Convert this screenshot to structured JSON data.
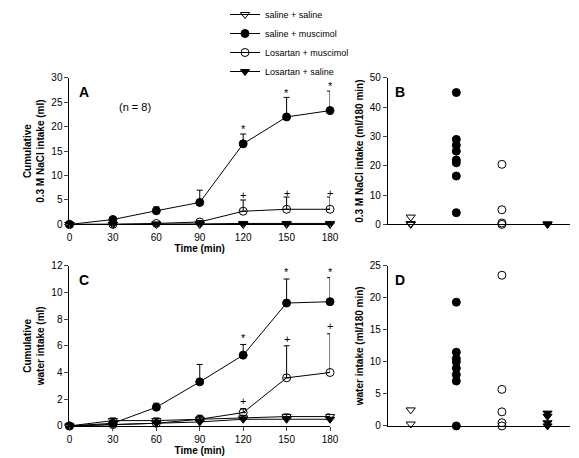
{
  "chart_data": [
    {
      "type": "line",
      "title": "A",
      "x_label": "Time (min)",
      "y_label": [
        "Cumulative",
        "0.3 M NaCl intake (ml)"
      ],
      "x": [
        0,
        30,
        60,
        90,
        120,
        150,
        180
      ],
      "xlim": [
        0,
        180
      ],
      "xticks": [
        0,
        30,
        60,
        90,
        120,
        150,
        180
      ],
      "ylim": [
        0,
        30
      ],
      "yticks": [
        0,
        5,
        10,
        15,
        20,
        25,
        30
      ],
      "legend": "top",
      "series": [
        {
          "name": "saline + saline",
          "color": "#000000",
          "marker": "triangle-down-open",
          "values": [
            0,
            0,
            0.1,
            0.1,
            0.2,
            0.2,
            0.2
          ],
          "errors": [
            0,
            0,
            0.1,
            0.1,
            0.1,
            0.1,
            0.1
          ]
        },
        {
          "name": "saline + muscimol",
          "color": "#000000",
          "marker": "circle",
          "values": [
            0,
            1,
            2.8,
            4.5,
            16.5,
            22,
            23.3
          ],
          "errors": [
            0,
            0.3,
            0.8,
            2.5,
            2,
            4,
            4
          ]
        },
        {
          "name": "Losartan + muscimol",
          "color": "#000000",
          "marker": "circle-open",
          "values": [
            0,
            0,
            0.2,
            0.5,
            2.7,
            3.1,
            3.1
          ],
          "errors": [
            0,
            0,
            0.2,
            0.3,
            2.3,
            2.5,
            2.5
          ]
        },
        {
          "name": "Losartan + saline",
          "color": "#000000",
          "marker": "triangle-down",
          "values": [
            0,
            0,
            0,
            0,
            0,
            0,
            0
          ],
          "errors": [
            0,
            0,
            0,
            0,
            0,
            0,
            0
          ]
        }
      ],
      "annotations": [
        {
          "text": "(n = 8)",
          "x": 45,
          "y": 24
        },
        {
          "text": "*",
          "x": 120,
          "y": 19.5
        },
        {
          "text": "*",
          "x": 150,
          "y": 27
        },
        {
          "text": "*",
          "x": 180,
          "y": 28.3
        },
        {
          "text": "+",
          "x": 120,
          "y": 6
        },
        {
          "text": "+",
          "x": 150,
          "y": 6.5
        },
        {
          "text": "+",
          "x": 180,
          "y": 6.5
        }
      ]
    },
    {
      "type": "scatter",
      "title": "B",
      "y_label": [
        "0.3 M NaCl intake (ml/180 min)"
      ],
      "ylim": [
        0,
        50
      ],
      "yticks": [
        0,
        10,
        20,
        30,
        40,
        50
      ],
      "tick_labels": "y",
      "series": [
        {
          "name": "saline + saline",
          "color": "#000000",
          "marker": "triangle-down-open",
          "values": [
            2.5,
            0.3,
            0
          ]
        },
        {
          "name": "saline + muscimol",
          "color": "#000000",
          "marker": "circle",
          "values": [
            45,
            29,
            27,
            25,
            22,
            21,
            16.5,
            4
          ]
        },
        {
          "name": "Losartan + muscimol",
          "color": "#000000",
          "marker": "circle-open",
          "values": [
            20.5,
            5,
            0.5,
            0
          ]
        },
        {
          "name": "Losartan + saline",
          "color": "#000000",
          "marker": "triangle-down",
          "values": [
            0.2,
            0
          ]
        }
      ]
    },
    {
      "type": "line",
      "title": "C",
      "x_label": "Time (min)",
      "y_label": [
        "Cumulative",
        "water intake (ml)"
      ],
      "x": [
        0,
        30,
        60,
        90,
        120,
        150,
        180
      ],
      "xlim": [
        0,
        180
      ],
      "xticks": [
        0,
        30,
        60,
        90,
        120,
        150,
        180
      ],
      "ylim": [
        0,
        12
      ],
      "yticks": [
        0,
        2,
        4,
        6,
        8,
        10,
        12
      ],
      "series": [
        {
          "name": "saline + saline",
          "color": "#000000",
          "marker": "triangle-down-open",
          "values": [
            0,
            0.4,
            0.4,
            0.5,
            0.6,
            0.7,
            0.7
          ],
          "errors": [
            0,
            0.2,
            0.2,
            0.2,
            0.2,
            0.2,
            0.2
          ]
        },
        {
          "name": "saline + muscimol",
          "color": "#000000",
          "marker": "circle",
          "values": [
            0,
            0.2,
            1.4,
            3.3,
            5.3,
            9.2,
            9.3
          ],
          "errors": [
            0,
            0.1,
            0.3,
            1.3,
            0.8,
            1.8,
            1.8
          ]
        },
        {
          "name": "Losartan + muscimol",
          "color": "#000000",
          "marker": "circle-open",
          "values": [
            0,
            0.1,
            0.2,
            0.5,
            1.0,
            3.6,
            4.0
          ],
          "errors": [
            0,
            0.1,
            0.1,
            0.3,
            0.3,
            2.4,
            2.9
          ]
        },
        {
          "name": "Losartan + saline",
          "color": "#000000",
          "marker": "triangle-down",
          "values": [
            0,
            0.1,
            0.2,
            0.3,
            0.5,
            0.5,
            0.5
          ],
          "errors": [
            0,
            0.1,
            0.1,
            0.1,
            0.1,
            0.1,
            0.1
          ]
        }
      ],
      "annotations": [
        {
          "text": "*",
          "x": 120,
          "y": 6.6
        },
        {
          "text": "*",
          "x": 150,
          "y": 11.5
        },
        {
          "text": "*",
          "x": 180,
          "y": 11.5
        },
        {
          "text": "+",
          "x": 120,
          "y": 1.9
        },
        {
          "text": "+",
          "x": 150,
          "y": 6.5
        },
        {
          "text": "+",
          "x": 180,
          "y": 7.5
        }
      ]
    },
    {
      "type": "scatter",
      "title": "D",
      "y_label": [
        "water intake (ml/180 min)"
      ],
      "ylim": [
        0,
        25
      ],
      "yticks": [
        0,
        5,
        10,
        15,
        20,
        25
      ],
      "tick_labels": "y",
      "series": [
        {
          "name": "saline + saline",
          "color": "#000000",
          "marker": "triangle-down-open",
          "values": [
            2.5,
            0.3
          ]
        },
        {
          "name": "saline + muscimol",
          "color": "#000000",
          "marker": "circle",
          "values": [
            19.3,
            11.5,
            10.5,
            10,
            9,
            8,
            7,
            0
          ]
        },
        {
          "name": "Losartan + muscimol",
          "color": "#000000",
          "marker": "circle-open",
          "values": [
            23.5,
            5.7,
            2.2,
            0.5,
            0
          ]
        },
        {
          "name": "Losartan + saline",
          "color": "#000000",
          "marker": "triangle-down",
          "values": [
            2,
            1.5,
            0.5,
            0
          ]
        }
      ]
    }
  ]
}
